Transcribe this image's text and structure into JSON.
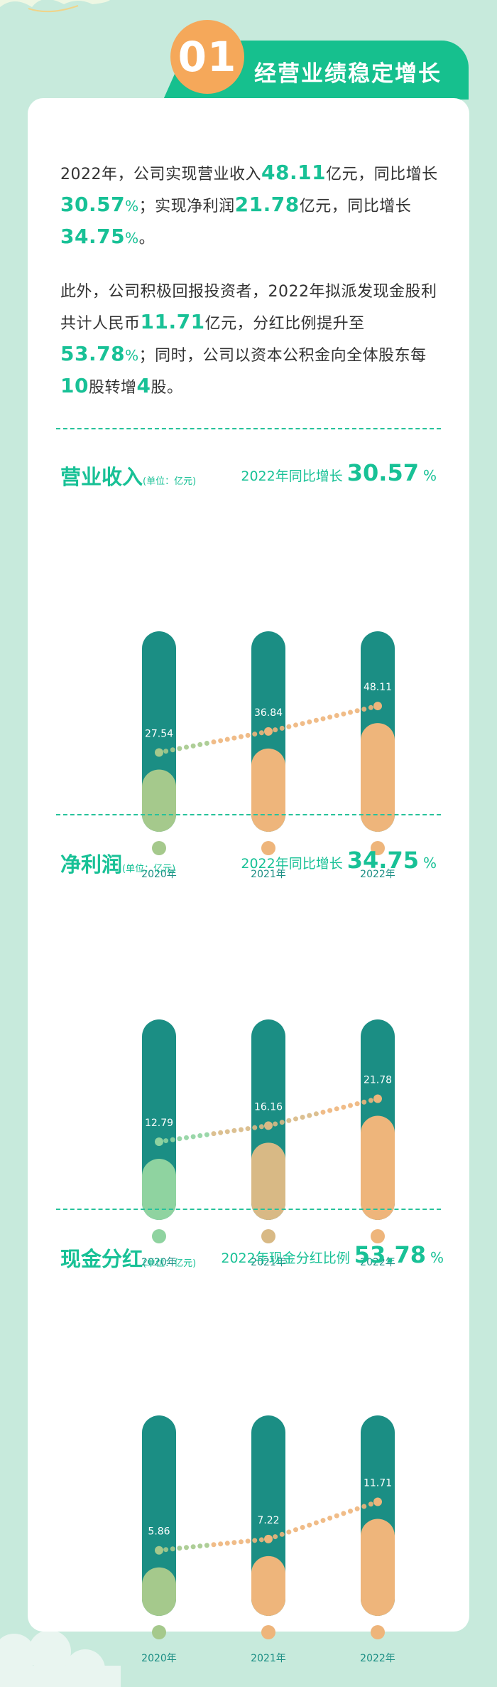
{
  "header": {
    "number": "01",
    "title": "经营业绩稳定增长"
  },
  "intro": {
    "p1": [
      "2022年，公司实现营业收入",
      "48.11",
      "亿元，同比增长",
      "30.57",
      "%",
      "；实现净利润",
      "21.78",
      "亿元，同比增长",
      "34.75",
      "%",
      "。"
    ],
    "p2": [
      "此外，公司积极回报投资者，2022年拟派发现金股利共计人民币",
      "11.71",
      "亿元，分红比例提升至",
      "53.78",
      "%",
      "；同时，公司以资本公积金向全体股东每",
      "10",
      "股转增",
      "4",
      "股。"
    ]
  },
  "sections": [
    {
      "title": "营业收入",
      "unit": "(单位：亿元)",
      "growth_label": "2022年同比增长",
      "growth_value": "30.57",
      "growth_pct": "%"
    },
    {
      "title": "净利润",
      "unit": "(单位：亿元)",
      "growth_label": "2022年同比增长",
      "growth_value": "34.75",
      "growth_pct": "%"
    },
    {
      "title": "现金分红",
      "unit": "(单位：亿元)",
      "growth_label": "2022年现金分红比例",
      "growth_value": "53.78",
      "growth_pct": "%"
    }
  ],
  "colors": {
    "teal": "#1b8e84",
    "accent": "#18c196",
    "orange": "#eeb57b",
    "green": "#a5c98c",
    "mint": "#8fd3a0",
    "tan": "#d8b985"
  },
  "chart_data": [
    {
      "type": "bar",
      "title": "营业收入",
      "categories": [
        "2020年",
        "2021年",
        "2022年"
      ],
      "values": [
        27.54,
        36.84,
        48.11
      ],
      "ylim": [
        0,
        55
      ]
    },
    {
      "type": "bar",
      "title": "净利润",
      "categories": [
        "2020年",
        "2021年",
        "2022年"
      ],
      "values": [
        12.79,
        16.16,
        21.78
      ],
      "ylim": [
        0,
        26
      ]
    },
    {
      "type": "bar",
      "title": "现金分红",
      "categories": [
        "2020年",
        "2021年",
        "2022年"
      ],
      "values": [
        5.86,
        7.22,
        11.71
      ],
      "ylim": [
        0,
        15
      ]
    }
  ]
}
